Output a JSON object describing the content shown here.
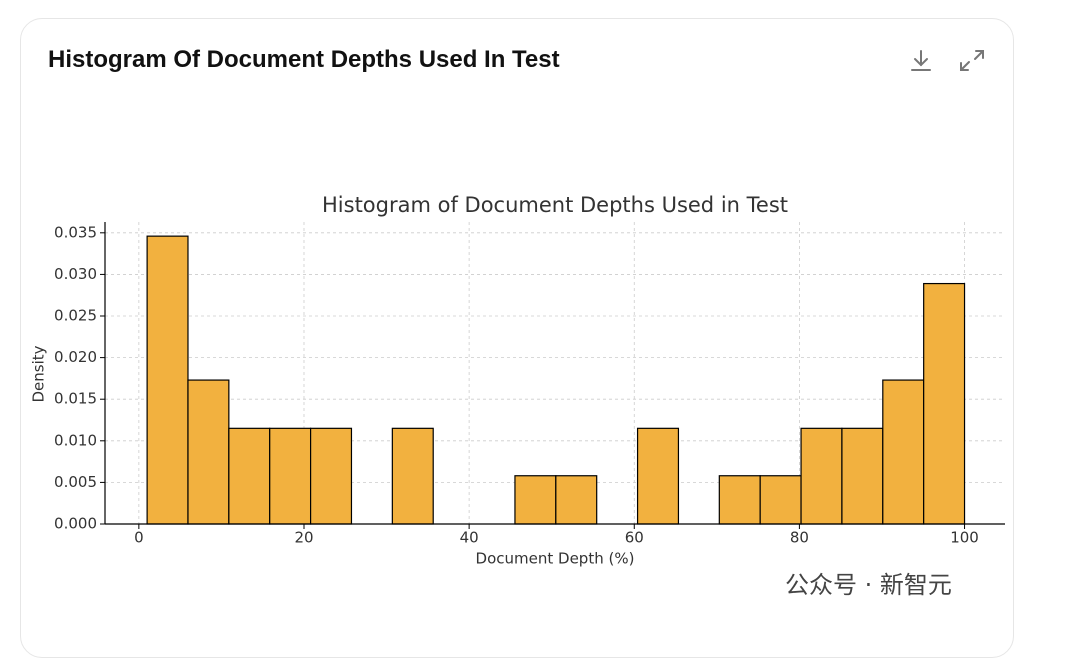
{
  "header": {
    "title": "Histogram Of Document Depths Used In Test"
  },
  "chart_data": {
    "type": "histogram",
    "title": "Histogram of Document Depths Used in Test",
    "xlabel": "Document Depth (%)",
    "ylabel": "Density",
    "bins": [
      1,
      5.95,
      10.9,
      15.85,
      20.8,
      25.75,
      30.7,
      35.65,
      40.6,
      45.55,
      50.5,
      55.45,
      60.4,
      65.35,
      70.3,
      75.25,
      80.2,
      85.15,
      90.1,
      95.05,
      100
    ],
    "values": [
      0.0346,
      0.0173,
      0.0115,
      0.0115,
      0.0115,
      0,
      0.0115,
      0,
      0,
      0.0058,
      0.0058,
      0,
      0.0115,
      0,
      0.0058,
      0.0058,
      0.0115,
      0.0115,
      0.0173,
      0.0289
    ],
    "color": "#f2b13f",
    "xlim": [
      -4.1,
      104.9
    ],
    "xticks": [
      0,
      20,
      40,
      60,
      80,
      100
    ],
    "ylim": [
      0,
      0.0363
    ],
    "yticks": [
      {
        "value": 0,
        "label": "0.000"
      },
      {
        "value": 0.005,
        "label": "0.005"
      },
      {
        "value": 0.01,
        "label": "0.010"
      },
      {
        "value": 0.015,
        "label": "0.015"
      },
      {
        "value": 0.02,
        "label": "0.020"
      },
      {
        "value": 0.025,
        "label": "0.025"
      },
      {
        "value": 0.03,
        "label": "0.030"
      },
      {
        "value": 0.035,
        "label": "0.035"
      }
    ],
    "grid": true
  },
  "watermark": "公众号 · 新智元"
}
